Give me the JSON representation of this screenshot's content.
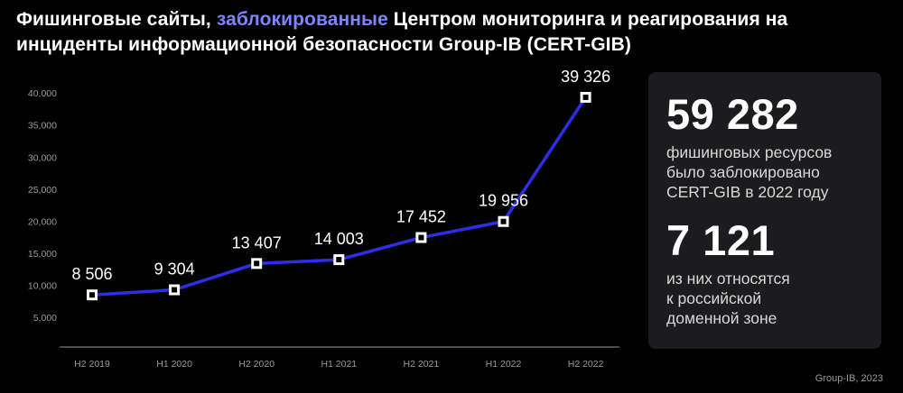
{
  "header": {
    "title_part1": "Фишинговые сайты, ",
    "title_highlight": "заблокированные",
    "title_part2": " Центром мониторинга и реагирования на инциденты информационной безопасности Group-IB (CERT-GIB)"
  },
  "colors": {
    "background": "#000000",
    "line": "#2e2ee6",
    "highlight": "#7d84ff",
    "panel": "#1c1c1e"
  },
  "chart_data": {
    "type": "line",
    "categories": [
      "H2 2019",
      "H1 2020",
      "H2 2020",
      "H1 2021",
      "H2 2021",
      "H1 2022",
      "H2 2022"
    ],
    "series": [
      {
        "values": [
          8506,
          9304,
          13407,
          14003,
          17452,
          19956,
          39326
        ]
      }
    ],
    "data_labels": [
      "8 506",
      "9 304",
      "13 407",
      "14 003",
      "17 452",
      "19 956",
      "39 326"
    ],
    "y_ticks": [
      5000,
      10000,
      15000,
      20000,
      25000,
      30000,
      35000,
      40000
    ],
    "y_tick_labels": [
      "5,000",
      "10,000",
      "15,000",
      "20,000",
      "25,000",
      "30,000",
      "35,000",
      "40,000"
    ],
    "ylim": [
      0,
      40000
    ],
    "grid": false,
    "xlabel": "",
    "ylabel": ""
  },
  "stats": {
    "total_value": "59 282",
    "total_desc": "фишинговых ресурсов\nбыло заблокировано\nCERT-GIB в 2022 году",
    "ru_value": "7 121",
    "ru_desc": "из них относятся\nк российской\nдоменной зоне"
  },
  "source": "Group-IB, 2023"
}
